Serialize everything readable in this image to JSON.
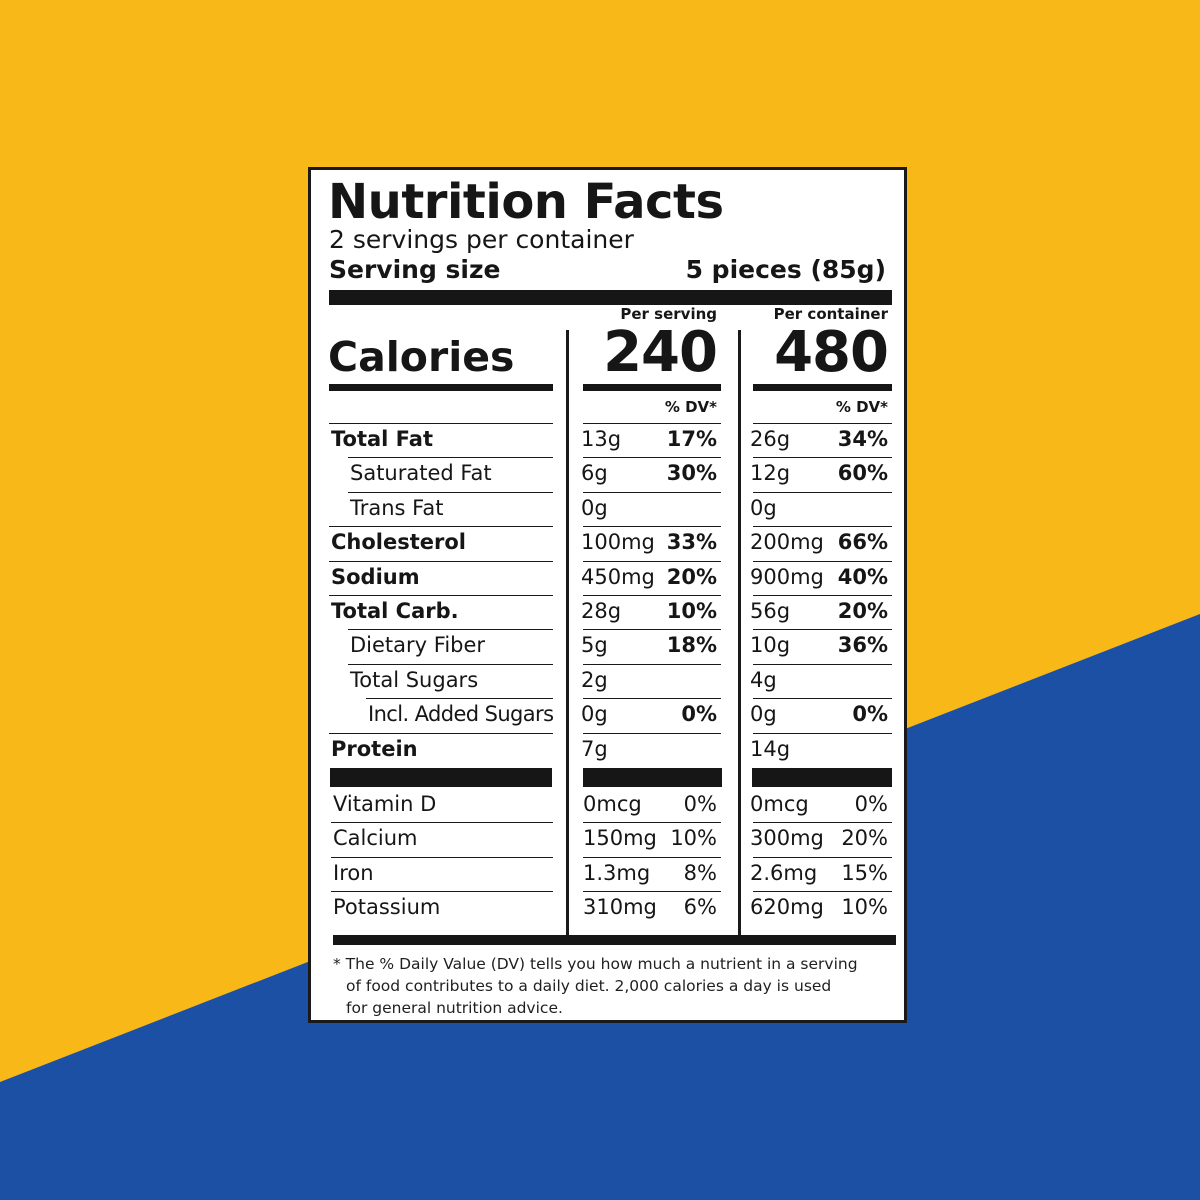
{
  "colors": {
    "background_yellow": "#F7B818",
    "background_blue": "#1C50A5",
    "label_bg": "#FFFFFF",
    "ink": "#161616"
  },
  "title": "Nutrition Facts",
  "servings_per_container": "2 servings per container",
  "serving_size": {
    "label": "Serving size",
    "value": "5 pieces (85g)"
  },
  "columns": {
    "per_serving": "Per serving",
    "per_container": "Per container",
    "dv_header": "% DV*"
  },
  "calories": {
    "label": "Calories",
    "per_serving": "240",
    "per_container": "480"
  },
  "nutrients": [
    {
      "name": "Total Fat",
      "bold": true,
      "indent": 0,
      "serving": {
        "amount": "13g",
        "dv": "17%"
      },
      "container": {
        "amount": "26g",
        "dv": "34%"
      }
    },
    {
      "name": "Saturated Fat",
      "bold": false,
      "indent": 1,
      "serving": {
        "amount": "6g",
        "dv": "30%"
      },
      "container": {
        "amount": "12g",
        "dv": "60%"
      }
    },
    {
      "name": "Trans Fat",
      "bold": false,
      "indent": 1,
      "serving": {
        "amount": "0g",
        "dv": ""
      },
      "container": {
        "amount": "0g",
        "dv": ""
      }
    },
    {
      "name": "Cholesterol",
      "bold": true,
      "indent": 0,
      "serving": {
        "amount": "100mg",
        "dv": "33%"
      },
      "container": {
        "amount": "200mg",
        "dv": "66%"
      }
    },
    {
      "name": "Sodium",
      "bold": true,
      "indent": 0,
      "serving": {
        "amount": "450mg",
        "dv": "20%"
      },
      "container": {
        "amount": "900mg",
        "dv": "40%"
      }
    },
    {
      "name": "Total Carb.",
      "bold": true,
      "indent": 0,
      "serving": {
        "amount": "28g",
        "dv": "10%"
      },
      "container": {
        "amount": "56g",
        "dv": "20%"
      }
    },
    {
      "name": "Dietary Fiber",
      "bold": false,
      "indent": 1,
      "serving": {
        "amount": "5g",
        "dv": "18%"
      },
      "container": {
        "amount": "10g",
        "dv": "36%"
      }
    },
    {
      "name": "Total Sugars",
      "bold": false,
      "indent": 1,
      "serving": {
        "amount": "2g",
        "dv": ""
      },
      "container": {
        "amount": "4g",
        "dv": ""
      }
    },
    {
      "name": "Incl. Added Sugars",
      "bold": false,
      "indent": 2,
      "serving": {
        "amount": "0g",
        "dv": "0%"
      },
      "container": {
        "amount": "0g",
        "dv": "0%"
      }
    },
    {
      "name": "Protein",
      "bold": true,
      "indent": 0,
      "serving": {
        "amount": "7g",
        "dv": ""
      },
      "container": {
        "amount": "14g",
        "dv": ""
      }
    }
  ],
  "vitamins": [
    {
      "name": "Vitamin D",
      "serving": {
        "amount": "0mcg",
        "dv": "0%"
      },
      "container": {
        "amount": "0mcg",
        "dv": "0%"
      }
    },
    {
      "name": "Calcium",
      "serving": {
        "amount": "150mg",
        "dv": "10%"
      },
      "container": {
        "amount": "300mg",
        "dv": "20%"
      }
    },
    {
      "name": "Iron",
      "serving": {
        "amount": "1.3mg",
        "dv": "8%"
      },
      "container": {
        "amount": "2.6mg",
        "dv": "15%"
      }
    },
    {
      "name": "Potassium",
      "serving": {
        "amount": "310mg",
        "dv": "6%"
      },
      "container": {
        "amount": "620mg",
        "dv": "10%"
      }
    }
  ],
  "footnote": [
    "* The % Daily Value (DV) tells you how much a nutrient in a serving",
    "of food contributes to a daily diet. 2,000 calories a day is used",
    "for general nutrition advice."
  ]
}
